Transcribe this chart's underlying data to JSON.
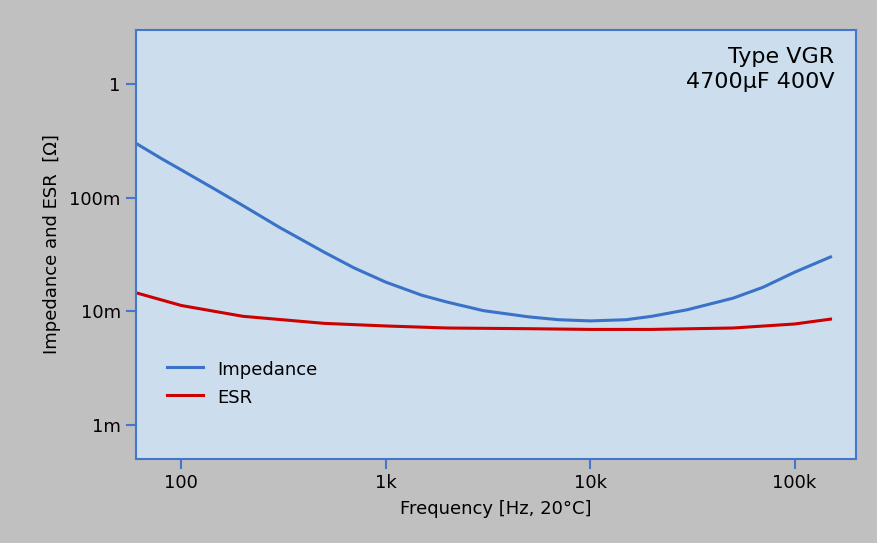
{
  "title_line1": "Type VGR",
  "title_line2": "4700μF 400V",
  "xlabel": "Frequency [Hz, 20°C]",
  "ylabel": "Impedance and ESR  [Ω]",
  "background_color": "#ccdded",
  "outer_background": "#c0c0c0",
  "freq_range": [
    60,
    200000
  ],
  "ylim": [
    0.0005,
    3.0
  ],
  "impedance_color": "#3a72c8",
  "esr_color": "#cc0000",
  "line_width": 2.2,
  "impedance_freq": [
    60,
    80,
    100,
    150,
    200,
    300,
    500,
    700,
    1000,
    1500,
    2000,
    3000,
    5000,
    7000,
    10000,
    15000,
    20000,
    30000,
    50000,
    70000,
    100000,
    150000
  ],
  "impedance_val": [
    0.3,
    0.22,
    0.175,
    0.115,
    0.085,
    0.055,
    0.033,
    0.024,
    0.018,
    0.0138,
    0.012,
    0.0101,
    0.0089,
    0.0084,
    0.0082,
    0.0084,
    0.009,
    0.0103,
    0.013,
    0.0162,
    0.022,
    0.03
  ],
  "esr_freq": [
    60,
    100,
    200,
    500,
    1000,
    2000,
    5000,
    10000,
    20000,
    50000,
    100000,
    150000
  ],
  "esr_val": [
    0.0145,
    0.0112,
    0.009,
    0.0078,
    0.0074,
    0.0071,
    0.007,
    0.0069,
    0.0069,
    0.0071,
    0.0077,
    0.0085
  ],
  "legend_impedance": "Impedance",
  "legend_esr": "ESR",
  "yticks": [
    0.001,
    0.01,
    0.1,
    1
  ],
  "ytick_labels": [
    "1m",
    "10m",
    "100m",
    "1"
  ],
  "xticks": [
    100,
    1000,
    10000,
    100000
  ],
  "xtick_labels": [
    "100",
    "1k",
    "10k",
    "100k"
  ],
  "tick_color": "#4477cc",
  "spine_color": "#4477cc",
  "label_fontsize": 13,
  "tick_fontsize": 13,
  "title_fontsize": 16,
  "legend_fontsize": 13
}
